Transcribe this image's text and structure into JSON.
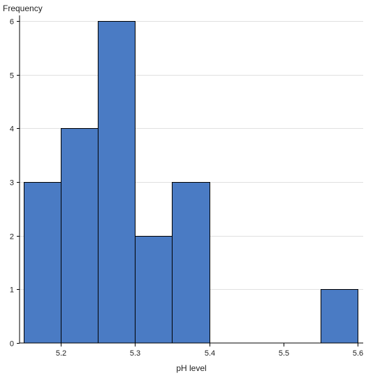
{
  "chart_data": {
    "type": "bar",
    "subtype": "histogram",
    "ylabel": "Frequency",
    "xlabel": "pH level",
    "xlim": [
      5.15,
      5.6
    ],
    "ylim": [
      0,
      6
    ],
    "xticks": [
      "5.2",
      "5.3",
      "5.4",
      "5.5",
      "5.6"
    ],
    "xtick_values": [
      5.2,
      5.3,
      5.4,
      5.5,
      5.6
    ],
    "yticks": [
      "0",
      "1",
      "2",
      "3",
      "4",
      "5",
      "6"
    ],
    "ytick_values": [
      0,
      1,
      2,
      3,
      4,
      5,
      6
    ],
    "bins": [
      {
        "start": 5.15,
        "end": 5.2,
        "count": 3
      },
      {
        "start": 5.2,
        "end": 5.25,
        "count": 4
      },
      {
        "start": 5.25,
        "end": 5.3,
        "count": 6
      },
      {
        "start": 5.3,
        "end": 5.35,
        "count": 2
      },
      {
        "start": 5.35,
        "end": 5.4,
        "count": 3
      },
      {
        "start": 5.55,
        "end": 5.6,
        "count": 1
      }
    ],
    "grid": "horizontal",
    "bar_color": "#4a7bc4",
    "bar_edge_color": "#000000",
    "grid_color": "#e0e0e0"
  }
}
